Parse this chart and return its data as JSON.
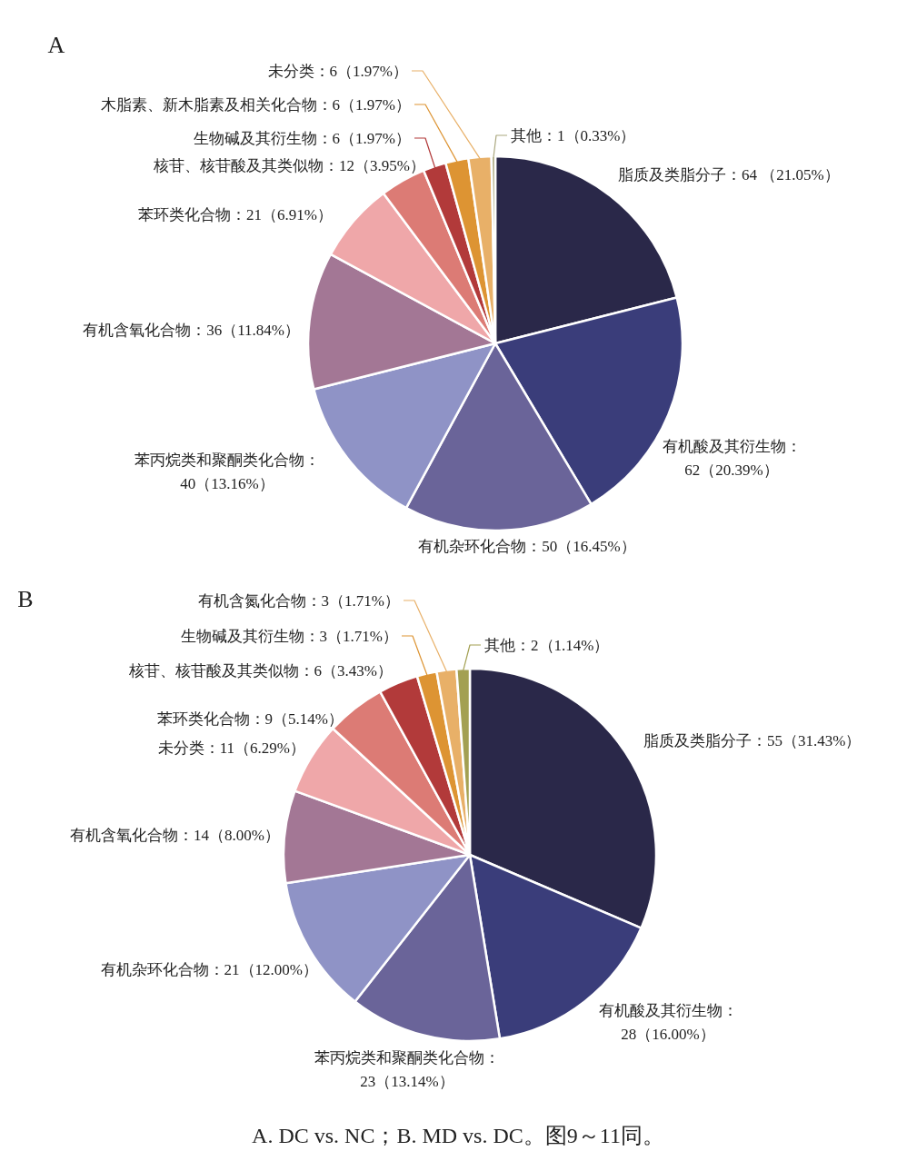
{
  "chart_data": [
    {
      "type": "pie",
      "title": "A",
      "categories": [
        "脂质及类脂分子",
        "有机酸及其衍生物",
        "有机杂环化合物",
        "苯丙烷类和聚酮类化合物",
        "有机含氧化合物",
        "苯环类化合物",
        "核苷、核苷酸及其类似物",
        "生物碱及其衍生物",
        "木脂素、新木脂素及相关化合物",
        "未分类",
        "其他"
      ],
      "values": [
        64,
        62,
        50,
        40,
        36,
        21,
        12,
        6,
        6,
        6,
        1
      ],
      "value_labels": [
        "：64 （21.05%）",
        "：\n62（20.39%）",
        "：50（16.45%）",
        "：\n40（13.16%）",
        "：36（11.84%）",
        "：21（6.91%）",
        "：12（3.95%）",
        "：6（1.97%）",
        "：6（1.97%）",
        "：6（1.97%）",
        "：1（0.33%）"
      ],
      "colors": [
        "#2a2849",
        "#3a3d7a",
        "#6a6499",
        "#8f93c6",
        "#a37795",
        "#efa7a9",
        "#dc7b75",
        "#b23a3a",
        "#dd9433",
        "#e8b068",
        "#aaa77e"
      ]
    },
    {
      "type": "pie",
      "title": "B",
      "categories": [
        "脂质及类脂分子",
        "有机酸及其衍生物",
        "苯丙烷类和聚酮类化合物",
        "有机杂环化合物",
        "有机含氧化合物",
        "未分类",
        "苯环类化合物",
        "核苷、核苷酸及其类似物",
        "生物碱及其衍生物",
        "有机含氮化合物",
        "其他"
      ],
      "values": [
        55,
        28,
        23,
        21,
        14,
        11,
        9,
        6,
        3,
        3,
        2
      ],
      "value_labels": [
        "：55（31.43%）",
        "：\n28（16.00%）",
        "：\n23（13.14%）",
        "：21（12.00%）",
        "：14（8.00%）",
        "：11（6.29%）",
        "：9（5.14%）",
        "：6（3.43%）",
        "：3（1.71%）",
        "：3（1.71%）",
        "：2（1.14%）"
      ],
      "colors": [
        "#2a2849",
        "#3a3d7a",
        "#6a6499",
        "#8f93c6",
        "#a37795",
        "#efa7a9",
        "#dc7b75",
        "#b23a3a",
        "#dd9433",
        "#e8b068",
        "#a3a052"
      ],
      "annotations": [
        "A. DC vs. NC；B. MD vs. DC。图9～11同。"
      ]
    }
  ]
}
